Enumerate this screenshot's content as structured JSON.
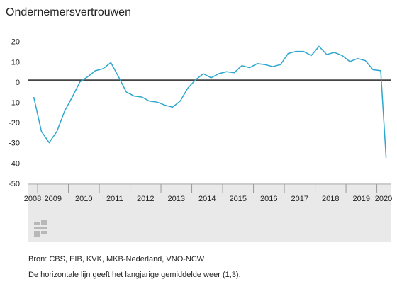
{
  "chart_data": {
    "type": "line",
    "title": "Ondernemersvertrouwen",
    "x": [
      2008.875,
      2009.125,
      2009.375,
      2009.625,
      2009.875,
      2010.125,
      2010.375,
      2010.625,
      2010.875,
      2011.125,
      2011.375,
      2011.625,
      2011.875,
      2012.125,
      2012.375,
      2012.625,
      2012.875,
      2013.125,
      2013.375,
      2013.625,
      2013.875,
      2014.125,
      2014.375,
      2014.625,
      2014.875,
      2015.125,
      2015.375,
      2015.625,
      2015.875,
      2016.125,
      2016.375,
      2016.625,
      2016.875,
      2017.125,
      2017.375,
      2017.625,
      2017.875,
      2018.125,
      2018.375,
      2018.625,
      2018.875,
      2019.125,
      2019.375,
      2019.625,
      2019.875,
      2020.125,
      2020.3
    ],
    "series": [
      {
        "name": "Ondernemersvertrouwen",
        "color": "#2ea7cc",
        "values": [
          -7,
          -24,
          -29.5,
          -24,
          -14,
          -7,
          0.5,
          3,
          6,
          7,
          10,
          3,
          -4.5,
          -6.5,
          -7,
          -9,
          -9.5,
          -11,
          -12,
          -9,
          -2.5,
          1.5,
          4.5,
          2.5,
          4.5,
          5.5,
          5,
          8.5,
          7.5,
          9.5,
          9,
          8,
          9,
          14.5,
          15.5,
          15.5,
          13.5,
          18,
          14,
          15,
          13.5,
          10.5,
          12,
          11,
          6.5,
          6,
          -37
        ]
      }
    ],
    "reference_line": 1.3,
    "xlim": [
      2008.7,
      2020.47
    ],
    "xticks": [
      2008,
      2009,
      2010,
      2011,
      2012,
      2013,
      2014,
      2015,
      2016,
      2017,
      2018,
      2019,
      2020
    ],
    "ylim": [
      -50,
      25
    ],
    "yticks": [
      20,
      10,
      0,
      -10,
      -20,
      -30,
      -40,
      -50
    ],
    "source": "Bron: CBS, EIB, KVK, MKB-Nederland, VNO-NCW",
    "note": "De horizontale lijn geeft het langjarige gemiddelde weer (1,3)."
  }
}
